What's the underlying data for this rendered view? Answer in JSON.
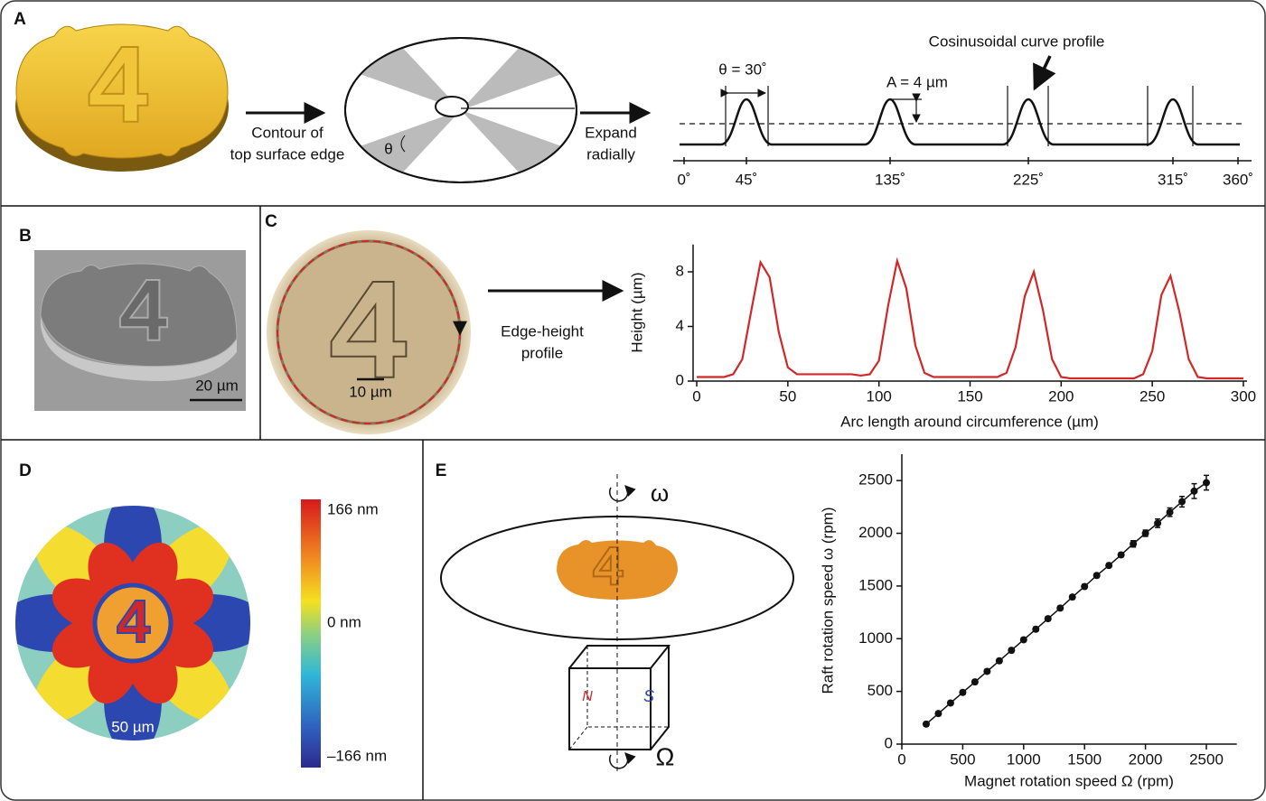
{
  "panel_labels": [
    "A",
    "B",
    "C",
    "D",
    "E"
  ],
  "panel_a": {
    "step1": [
      "Contour of",
      "top surface edge"
    ],
    "theta_symbol": "θ",
    "step2": [
      "Expand",
      "radially"
    ],
    "theta_label": "θ = 30˚",
    "amplitude_label": "A = 4 µm",
    "callout": "Cosinusoidal curve profile",
    "axis_labels": [
      "0˚",
      "45˚",
      "135˚",
      "225˚",
      "315˚",
      "360˚"
    ]
  },
  "panel_b": {
    "scale_bar": "20 µm"
  },
  "panel_c": {
    "scale_bar": "10 µm",
    "arrow_label": [
      "Edge-height",
      "profile"
    ]
  },
  "panel_d": {
    "scale_bar": "50 µm",
    "colorbar_labels": [
      "166 nm",
      "0 nm",
      "–166 nm"
    ]
  },
  "panel_e": {
    "omega": "ω",
    "big_omega": "Ω",
    "north": "N",
    "south": "S"
  },
  "chart_data": [
    {
      "type": "line",
      "xlabel": "Arc length around circumference (µm)",
      "ylabel": "Height (µm)",
      "color": "#d02828",
      "x": [
        0,
        5,
        10,
        15,
        20,
        25,
        30,
        35,
        40,
        45,
        50,
        55,
        60,
        65,
        70,
        75,
        80,
        85,
        90,
        95,
        100,
        105,
        110,
        115,
        120,
        125,
        130,
        135,
        140,
        145,
        150,
        155,
        160,
        165,
        170,
        175,
        180,
        185,
        190,
        195,
        200,
        205,
        210,
        215,
        220,
        225,
        230,
        235,
        240,
        245,
        250,
        255,
        260,
        265,
        270,
        275,
        280,
        285,
        290,
        295,
        300
      ],
      "values": [
        0.3,
        0.3,
        0.3,
        0.3,
        0.5,
        1.6,
        5.2,
        8.7,
        7.6,
        3.6,
        1.0,
        0.5,
        0.5,
        0.5,
        0.5,
        0.5,
        0.5,
        0.5,
        0.4,
        0.5,
        1.5,
        5.5,
        8.8,
        6.8,
        2.6,
        0.6,
        0.3,
        0.3,
        0.3,
        0.3,
        0.3,
        0.3,
        0.3,
        0.3,
        0.6,
        2.5,
        6.2,
        8.0,
        5.2,
        1.6,
        0.3,
        0.2,
        0.2,
        0.2,
        0.2,
        0.2,
        0.2,
        0.2,
        0.2,
        0.5,
        2.2,
        6.3,
        7.7,
        5.0,
        1.6,
        0.3,
        0.2,
        0.2,
        0.2,
        0.2,
        0.2
      ],
      "xlim": [
        -2,
        302
      ],
      "ylim": [
        0,
        10
      ],
      "xticks": [
        0,
        50,
        100,
        150,
        200,
        250,
        300
      ],
      "yticks": [
        0,
        4,
        8
      ]
    },
    {
      "type": "scatter",
      "xlabel": "Magnet rotation speed Ω (rpm)",
      "ylabel": "Raft rotation speed ω (rpm)",
      "color": "#111111",
      "x": [
        200,
        300,
        400,
        500,
        600,
        700,
        800,
        900,
        1000,
        1100,
        1200,
        1300,
        1400,
        1500,
        1600,
        1700,
        1800,
        1900,
        2000,
        2100,
        2200,
        2300,
        2400,
        2500
      ],
      "values": [
        190,
        290,
        390,
        490,
        590,
        690,
        790,
        890,
        990,
        1090,
        1190,
        1290,
        1395,
        1495,
        1600,
        1695,
        1795,
        1900,
        2000,
        2095,
        2200,
        2300,
        2400,
        2480
      ],
      "errors": [
        20,
        20,
        20,
        20,
        20,
        20,
        20,
        20,
        20,
        20,
        20,
        20,
        20,
        20,
        20,
        20,
        20,
        30,
        30,
        40,
        40,
        50,
        70,
        70
      ],
      "xlim": [
        0,
        2750
      ],
      "ylim": [
        0,
        2750
      ],
      "xticks": [
        0,
        500,
        1000,
        1500,
        2000,
        2500
      ],
      "yticks": [
        0,
        500,
        1000,
        1500,
        2000,
        2500
      ]
    }
  ]
}
